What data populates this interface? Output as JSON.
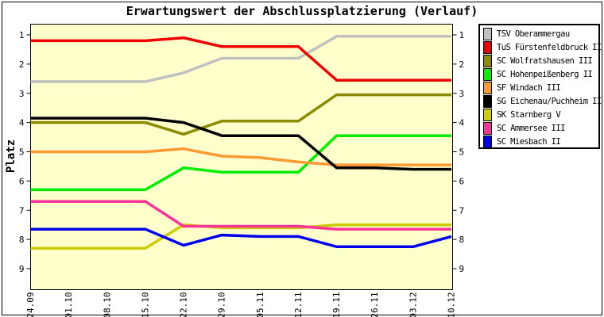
{
  "chart_data": {
    "type": "line",
    "title": "Erwartungswert der Abschlussplatzierung (Verlauf)",
    "ylabel": "Platz",
    "xlabel": "",
    "x_labels": [
      "24.09",
      "01.10",
      "08.10",
      "15.10",
      "22.10",
      "29.10",
      "05.11",
      "12.11",
      "19.11",
      "26.11",
      "03.12",
      "10.12"
    ],
    "y_ticks": [
      1,
      2,
      3,
      4,
      5,
      6,
      7,
      8,
      9
    ],
    "y_axis_inverted": true,
    "ylim": [
      0.6,
      9.7
    ],
    "grid": false,
    "legend_position": "right-outside",
    "plot_background": "#ffffcc",
    "axis_color": "#000000",
    "series": [
      {
        "name": "TSV Oberammergau",
        "color": "#c0c0c0",
        "values": [
          2.6,
          2.6,
          2.6,
          2.6,
          2.3,
          1.8,
          1.8,
          1.8,
          1.05,
          1.05,
          1.05,
          1.05
        ]
      },
      {
        "name": "TuS Fürstenfeldbruck II",
        "color": "#ee0000",
        "values": [
          1.2,
          1.2,
          1.2,
          1.2,
          1.1,
          1.4,
          1.4,
          1.4,
          2.55,
          2.55,
          2.55,
          2.55
        ]
      },
      {
        "name": "SC Wolfratshausen III",
        "color": "#8b8b00",
        "values": [
          4.0,
          4.0,
          4.0,
          4.0,
          4.4,
          3.95,
          3.95,
          3.95,
          3.05,
          3.05,
          3.05,
          3.05
        ]
      },
      {
        "name": "SC Hohenpeißenberg II",
        "color": "#00ee00",
        "values": [
          6.3,
          6.3,
          6.3,
          6.3,
          5.55,
          5.7,
          5.7,
          5.7,
          4.45,
          4.45,
          4.45,
          4.45
        ]
      },
      {
        "name": "SF Windach III",
        "color": "#ff9933",
        "values": [
          5.0,
          5.0,
          5.0,
          5.0,
          4.9,
          5.15,
          5.2,
          5.35,
          5.45,
          5.45,
          5.45,
          5.45
        ]
      },
      {
        "name": "SG Eichenau/Puchheim II",
        "color": "#000000",
        "values": [
          3.85,
          3.85,
          3.85,
          3.85,
          4.0,
          4.45,
          4.45,
          4.45,
          5.55,
          5.55,
          5.6,
          5.6
        ]
      },
      {
        "name": "SK Starnberg V",
        "color": "#cccc00",
        "values": [
          8.3,
          8.3,
          8.3,
          8.3,
          7.5,
          7.6,
          7.6,
          7.6,
          7.5,
          7.5,
          7.5,
          7.5
        ]
      },
      {
        "name": "SC Ammersee III",
        "color": "#ff3399",
        "values": [
          6.7,
          6.7,
          6.7,
          6.7,
          7.55,
          7.55,
          7.55,
          7.55,
          7.65,
          7.65,
          7.65,
          7.65
        ]
      },
      {
        "name": "SC Miesbach II",
        "color": "#0000ee",
        "values": [
          7.65,
          7.65,
          7.65,
          7.65,
          8.2,
          7.85,
          7.9,
          7.9,
          8.25,
          8.25,
          8.25,
          7.9
        ]
      }
    ]
  }
}
